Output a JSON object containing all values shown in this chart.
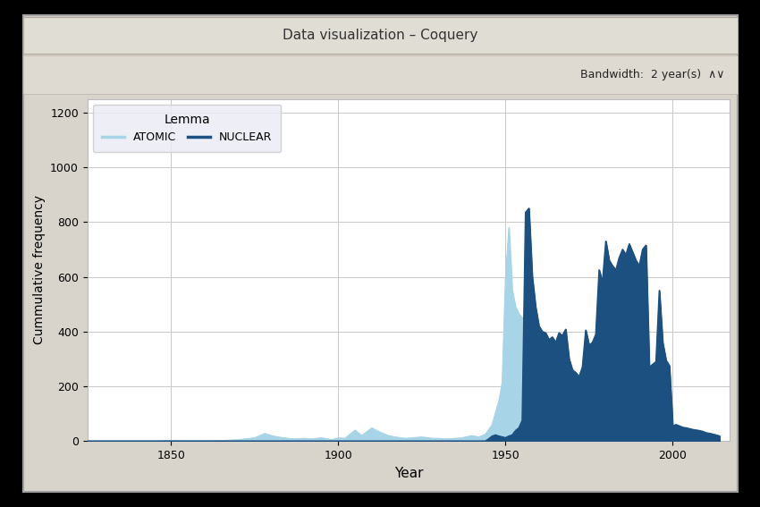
{
  "title": "Data visualization – Coquery",
  "xlabel": "Year",
  "ylabel": "Cummulative frequency",
  "legend_title": "Lemma",
  "legend_labels": [
    "ATOMIC",
    "NUCLEAR"
  ],
  "atomic_color": "#a8d4e8",
  "nuclear_color": "#1c5080",
  "window_bg": "#d4d0c8",
  "toolbar_bg": "#e8e4dc",
  "plot_bg": "#ffffff",
  "grid_color": "#c8c8c8",
  "ylim": [
    0,
    1250
  ],
  "xlim": [
    1825,
    2017
  ],
  "yticks": [
    0,
    200,
    400,
    600,
    800,
    1000,
    1200
  ],
  "xticks": [
    1850,
    1900,
    1950,
    2000
  ],
  "atomic_years": [
    1825,
    1830,
    1835,
    1840,
    1845,
    1850,
    1855,
    1860,
    1865,
    1870,
    1875,
    1878,
    1880,
    1882,
    1885,
    1887,
    1890,
    1892,
    1895,
    1898,
    1900,
    1902,
    1905,
    1907,
    1910,
    1912,
    1915,
    1917,
    1920,
    1922,
    1925,
    1928,
    1930,
    1932,
    1935,
    1937,
    1940,
    1942,
    1944,
    1946,
    1947,
    1948,
    1949,
    1950,
    1951,
    1952,
    1953,
    1954,
    1955,
    1956,
    1957,
    1958,
    1960,
    1962,
    1964,
    1966,
    1968,
    1970,
    1972,
    1974,
    1976,
    1978,
    1980,
    1982,
    1984,
    1986,
    1988,
    1990,
    1992,
    1994,
    1996,
    1998,
    2000,
    2002,
    2004,
    2006,
    2008,
    2010,
    2012,
    2014
  ],
  "atomic_values": [
    0,
    0,
    0,
    0,
    0,
    2,
    1,
    1,
    2,
    5,
    12,
    28,
    20,
    15,
    10,
    8,
    10,
    8,
    12,
    5,
    12,
    10,
    40,
    20,
    48,
    35,
    20,
    15,
    10,
    12,
    15,
    10,
    10,
    8,
    10,
    12,
    20,
    15,
    25,
    60,
    105,
    145,
    215,
    600,
    780,
    550,
    490,
    465,
    450,
    448,
    455,
    375,
    290,
    240,
    215,
    195,
    185,
    165,
    145,
    125,
    108,
    98,
    88,
    78,
    78,
    68,
    58,
    50,
    40,
    33,
    28,
    22,
    55,
    42,
    30,
    24,
    20,
    15,
    12,
    10
  ],
  "nuclear_years": [
    1825,
    1835,
    1845,
    1850,
    1860,
    1870,
    1880,
    1890,
    1900,
    1905,
    1910,
    1915,
    1920,
    1925,
    1930,
    1935,
    1940,
    1942,
    1944,
    1945,
    1946,
    1947,
    1948,
    1949,
    1950,
    1951,
    1952,
    1953,
    1954,
    1955,
    1956,
    1957,
    1958,
    1959,
    1960,
    1961,
    1962,
    1963,
    1964,
    1965,
    1966,
    1967,
    1968,
    1969,
    1970,
    1971,
    1972,
    1973,
    1974,
    1975,
    1976,
    1977,
    1978,
    1979,
    1980,
    1981,
    1982,
    1983,
    1984,
    1985,
    1986,
    1987,
    1988,
    1989,
    1990,
    1991,
    1992,
    1993,
    1994,
    1995,
    1996,
    1997,
    1998,
    1999,
    2000,
    2001,
    2002,
    2003,
    2004,
    2005,
    2006,
    2007,
    2008,
    2009,
    2010,
    2011,
    2012,
    2013,
    2014
  ],
  "nuclear_values": [
    0,
    0,
    0,
    0,
    0,
    0,
    0,
    0,
    0,
    0,
    0,
    0,
    0,
    0,
    0,
    0,
    0,
    0,
    0,
    8,
    18,
    22,
    18,
    15,
    12,
    18,
    22,
    38,
    48,
    75,
    835,
    850,
    600,
    490,
    420,
    400,
    395,
    370,
    380,
    360,
    395,
    385,
    408,
    300,
    260,
    250,
    235,
    270,
    405,
    350,
    360,
    390,
    625,
    580,
    730,
    660,
    640,
    625,
    670,
    700,
    680,
    720,
    690,
    660,
    640,
    700,
    715,
    270,
    280,
    290,
    550,
    360,
    295,
    275,
    55,
    60,
    55,
    50,
    48,
    45,
    42,
    40,
    38,
    35,
    30,
    28,
    25,
    22,
    18
  ]
}
